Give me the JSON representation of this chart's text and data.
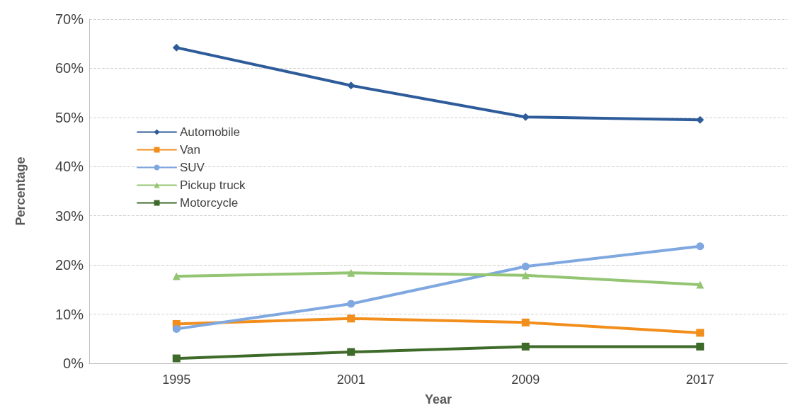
{
  "chart_data": {
    "type": "line",
    "xlabel": "Year",
    "ylabel": "Percentage",
    "categories": [
      "1995",
      "2001",
      "2009",
      "2017"
    ],
    "series": [
      {
        "name": "Automobile",
        "color": "#2e5c9a",
        "marker": "diamond",
        "values": [
          64.2,
          56.5,
          50.1,
          49.5
        ]
      },
      {
        "name": "Van",
        "color": "#f28e1c",
        "marker": "square",
        "values": [
          8.0,
          9.1,
          8.3,
          6.2
        ]
      },
      {
        "name": "SUV",
        "color": "#7fa8e0",
        "marker": "circle",
        "values": [
          7.0,
          12.1,
          19.7,
          23.8
        ]
      },
      {
        "name": "Pickup truck",
        "color": "#93c572",
        "marker": "triangle",
        "values": [
          17.7,
          18.4,
          17.9,
          16.0
        ]
      },
      {
        "name": "Motorcycle",
        "color": "#3f6b2a",
        "marker": "square",
        "values": [
          1.0,
          2.3,
          3.4,
          3.4
        ]
      }
    ],
    "ylim": [
      0,
      70
    ],
    "yticks": [
      {
        "value": 0,
        "label": "0%"
      },
      {
        "value": 10,
        "label": "10%"
      },
      {
        "value": 20,
        "label": "20%"
      },
      {
        "value": 30,
        "label": "30%"
      },
      {
        "value": 40,
        "label": "40%"
      },
      {
        "value": 50,
        "label": "50%"
      },
      {
        "value": 60,
        "label": "60%"
      },
      {
        "value": 70,
        "label": "70%"
      }
    ],
    "grid": "y",
    "legend": "left",
    "line_style": "solid"
  }
}
